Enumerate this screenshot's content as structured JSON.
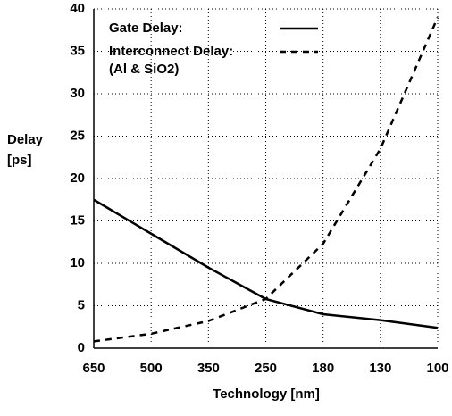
{
  "chart_data": {
    "type": "line",
    "xlabel": "Technology [nm]",
    "ylabel": [
      "Delay",
      "[ps]"
    ],
    "categories": [
      "650",
      "500",
      "350",
      "250",
      "180",
      "130",
      "100"
    ],
    "series": [
      {
        "name": "Gate Delay:",
        "color": "#000000",
        "dash": "solid",
        "values": [
          17.5,
          13.5,
          9.5,
          5.8,
          4.0,
          3.3,
          2.4
        ]
      },
      {
        "name": "Interconnect Delay:",
        "color": "#000000",
        "dash": "dashed",
        "values": [
          0.8,
          1.7,
          3.2,
          5.8,
          12.3,
          23.5,
          39
        ]
      }
    ],
    "annotation": "(Al & SiO2)",
    "ylim": [
      0,
      40
    ],
    "yticks": [
      0,
      5,
      10,
      15,
      20,
      25,
      30,
      35,
      40
    ],
    "grid": true,
    "legend": "upper left"
  }
}
